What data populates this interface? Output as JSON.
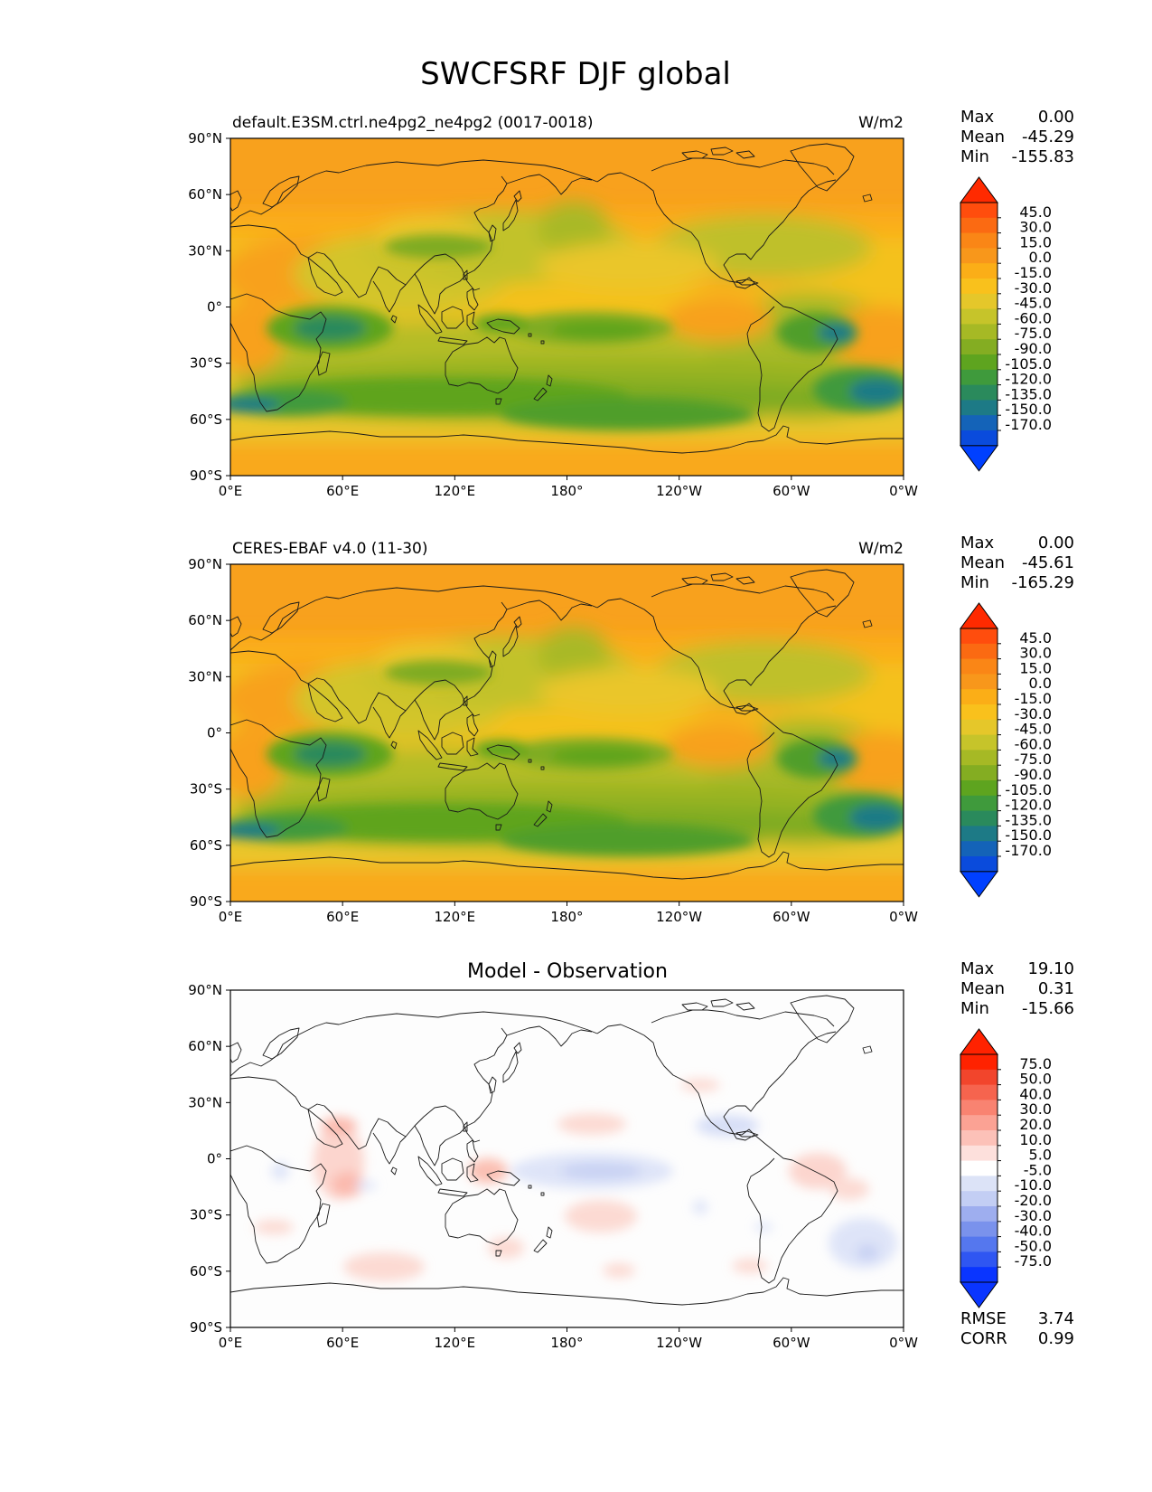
{
  "figure_title": "SWCFSRF DJF global",
  "colors": {
    "coast": "#1a1a1a",
    "frame": "#000000",
    "main_cmap": [
      "#f8971b",
      "#fbae17",
      "#f9c11c",
      "#e5c72a",
      "#c6c42a",
      "#a6b925",
      "#84ad22",
      "#5ea41f",
      "#3f9a3c",
      "#2a8a5c",
      "#1d7a86",
      "#1463b8",
      "#0a4bdc",
      "#0040ff",
      "#ff2a00",
      "#ff4d0d",
      "#fb6a12",
      "#fa8616"
    ],
    "diff_cmap": [
      "#0a35ff",
      "#2f56f2",
      "#5577ee",
      "#7a92ec",
      "#9eaeef",
      "#c3cef4",
      "#dce3f7",
      "#ffffff",
      "#fde0dc",
      "#fcc1b8",
      "#fba294",
      "#f98371",
      "#f6644e",
      "#f2452c",
      "#ff2200"
    ]
  },
  "panels": [
    {
      "id": "model",
      "left_title": "default.E3SM.ctrl.ne4pg2_ne4pg2 (0017-0018)",
      "center_title": "",
      "units": "W/m2",
      "stats": {
        "Max": "0.00",
        "Mean": "-45.29",
        "Min": "-155.83"
      },
      "colorbar": {
        "ticks": [
          "45.0",
          "30.0",
          "15.0",
          "0.0",
          "-15.0",
          "-30.0",
          "-45.0",
          "-60.0",
          "-75.0",
          "-90.0",
          "-105.0",
          "-120.0",
          "-135.0",
          "-150.0",
          "-170.0"
        ]
      }
    },
    {
      "id": "obs",
      "left_title": "CERES-EBAF v4.0 (11-30)",
      "center_title": "",
      "units": "W/m2",
      "stats": {
        "Max": "0.00",
        "Mean": "-45.61",
        "Min": "-165.29"
      },
      "colorbar": {
        "ticks": [
          "45.0",
          "30.0",
          "15.0",
          "0.0",
          "-15.0",
          "-30.0",
          "-45.0",
          "-60.0",
          "-75.0",
          "-90.0",
          "-105.0",
          "-120.0",
          "-135.0",
          "-150.0",
          "-170.0"
        ]
      }
    },
    {
      "id": "diff",
      "left_title": "",
      "center_title": "Model - Observation",
      "units": "",
      "stats": {
        "Max": "19.10",
        "Mean": "0.31",
        "Min": "-15.66"
      },
      "colorbar": {
        "ticks": [
          "75.0",
          "50.0",
          "40.0",
          "30.0",
          "20.0",
          "10.0",
          "5.0",
          "-5.0",
          "-10.0",
          "-20.0",
          "-30.0",
          "-40.0",
          "-50.0",
          "-75.0"
        ]
      },
      "metrics": {
        "RMSE": "3.74",
        "CORR": "0.99"
      }
    }
  ],
  "axes": {
    "y_ticks": [
      "90°N",
      "60°N",
      "30°N",
      "0°",
      "30°S",
      "60°S",
      "90°S"
    ],
    "x_ticks": [
      "0°E",
      "60°E",
      "120°E",
      "180°",
      "120°W",
      "60°W",
      "0°W"
    ]
  }
}
